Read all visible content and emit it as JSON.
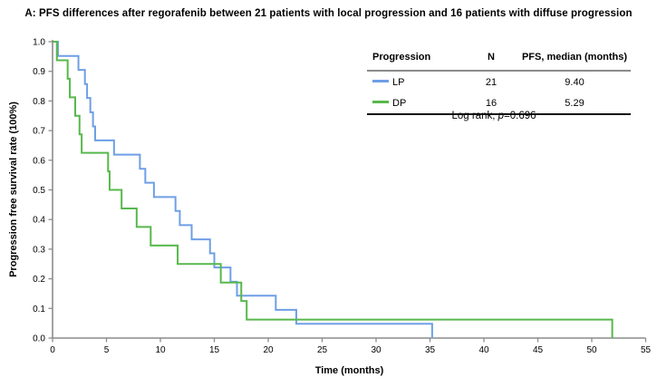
{
  "page": {
    "title": "A: PFS differences after regorafenib between 21 patients with local progression and 16 patients with diffuse progression"
  },
  "chart_data": {
    "type": "line",
    "variant": "kaplan_meier_step",
    "title": "A: PFS differences after regorafenib between 21 patients with local progression and 16 patients with diffuse progression",
    "xlabel": "Time (months)",
    "ylabel": "Progression free survival rate (100%)",
    "xlim": [
      0,
      55
    ],
    "ylim": [
      0,
      1
    ],
    "xticks": [
      0,
      5,
      10,
      15,
      20,
      25,
      30,
      35,
      40,
      45,
      50,
      55
    ],
    "yticks": [
      "0.0",
      "0.1",
      "0.2",
      "0.3",
      "0.4",
      "0.5",
      "0.6",
      "0.7",
      "0.8",
      "0.9",
      "1.0"
    ],
    "grid": false,
    "legend_position": "top-right",
    "axis_color": "#8c8c8c",
    "series": [
      {
        "name": "LP",
        "color": "#6e9fe6",
        "n": 21,
        "median_months": 9.4,
        "steps": [
          [
            0,
            1
          ],
          [
            0.5,
            0.952
          ],
          [
            2.4,
            0.905
          ],
          [
            3.0,
            0.857
          ],
          [
            3.2,
            0.81
          ],
          [
            3.5,
            0.762
          ],
          [
            3.75,
            0.714
          ],
          [
            3.95,
            0.667
          ],
          [
            5.7,
            0.619
          ],
          [
            8.1,
            0.571
          ],
          [
            8.6,
            0.524
          ],
          [
            9.4,
            0.476
          ],
          [
            11.4,
            0.429
          ],
          [
            11.8,
            0.381
          ],
          [
            12.9,
            0.333
          ],
          [
            14.6,
            0.286
          ],
          [
            15.0,
            0.238
          ],
          [
            16.5,
            0.19
          ],
          [
            17.1,
            0.143
          ],
          [
            20.7,
            0.095
          ],
          [
            22.6,
            0.048
          ],
          [
            35.2,
            0
          ]
        ]
      },
      {
        "name": "DP",
        "color": "#57b84b",
        "n": 16,
        "median_months": 5.29,
        "steps": [
          [
            0,
            1
          ],
          [
            0.4,
            0.9375
          ],
          [
            1.4,
            0.875
          ],
          [
            1.6,
            0.8125
          ],
          [
            2.1,
            0.75
          ],
          [
            2.5,
            0.6875
          ],
          [
            2.7,
            0.625
          ],
          [
            5.15,
            0.5625
          ],
          [
            5.29,
            0.5
          ],
          [
            6.4,
            0.4375
          ],
          [
            7.8,
            0.375
          ],
          [
            9.1,
            0.3125
          ],
          [
            11.6,
            0.25
          ],
          [
            15.6,
            0.1875
          ],
          [
            17.5,
            0.125
          ],
          [
            18.0,
            0.0625
          ],
          [
            51.9,
            0
          ]
        ]
      }
    ]
  },
  "legend": {
    "headers": [
      "Progression",
      "N",
      "PFS, median (months)"
    ],
    "rows": [
      {
        "label": "LP",
        "n": "21",
        "median": "9.40",
        "color": "#6e9fe6"
      },
      {
        "label": "DP",
        "n": "16",
        "median": "5.29",
        "color": "#57b84b"
      }
    ],
    "footer": {
      "prefix": "Log rank, ",
      "p": "p",
      "value": "=0.696"
    }
  }
}
